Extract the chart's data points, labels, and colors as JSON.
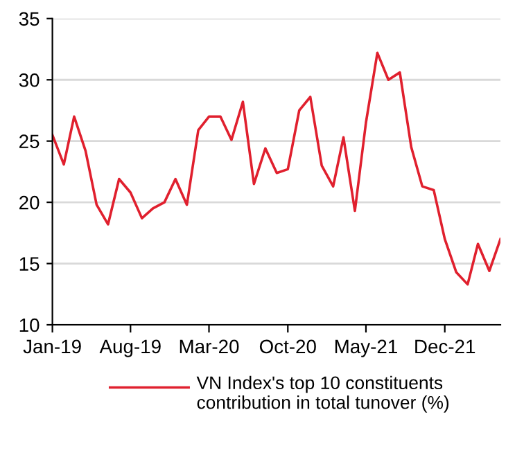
{
  "chart_data": {
    "type": "line",
    "x": [
      "2019-01",
      "2019-02",
      "2019-03",
      "2019-04",
      "2019-05",
      "2019-06",
      "2019-07",
      "2019-08",
      "2019-09",
      "2019-10",
      "2019-11",
      "2019-12",
      "2020-01",
      "2020-02",
      "2020-03",
      "2020-04",
      "2020-05",
      "2020-06",
      "2020-07",
      "2020-08",
      "2020-09",
      "2020-10",
      "2020-11",
      "2020-12",
      "2021-01",
      "2021-02",
      "2021-03",
      "2021-04",
      "2021-05",
      "2021-06",
      "2021-07",
      "2021-08",
      "2021-09",
      "2021-10",
      "2021-11",
      "2021-12",
      "2022-01",
      "2022-02",
      "2022-03",
      "2022-04",
      "2022-05"
    ],
    "series": [
      {
        "name": "VN Index's top 10 constituents contribution in total tunover (%)",
        "color": "#e0202e",
        "values": [
          25.5,
          23.1,
          27.0,
          24.2,
          19.8,
          18.2,
          21.9,
          20.8,
          18.7,
          19.5,
          20.0,
          21.9,
          19.8,
          25.9,
          27.0,
          27.0,
          25.1,
          28.2,
          21.5,
          24.4,
          22.4,
          22.7,
          27.5,
          28.6,
          23.0,
          21.3,
          25.3,
          19.3,
          26.5,
          32.2,
          30.0,
          30.6,
          24.5,
          21.3,
          21.0,
          17.0,
          14.3,
          13.3,
          16.6,
          14.4,
          17.0
        ]
      }
    ],
    "xlim": [
      "2019-01",
      "2022-05"
    ],
    "xticks": [
      {
        "value": "2019-01",
        "label": "Jan-19"
      },
      {
        "value": "2019-08",
        "label": "Aug-19"
      },
      {
        "value": "2020-03",
        "label": "Mar-20"
      },
      {
        "value": "2020-10",
        "label": "Oct-20"
      },
      {
        "value": "2021-05",
        "label": "May-21"
      },
      {
        "value": "2021-12",
        "label": "Dec-21"
      }
    ],
    "ylim": [
      10,
      35
    ],
    "yticks": [
      10,
      15,
      20,
      25,
      30,
      35
    ],
    "grid": "y",
    "legend": "bottom",
    "marker": "none",
    "line_style": "solid"
  }
}
